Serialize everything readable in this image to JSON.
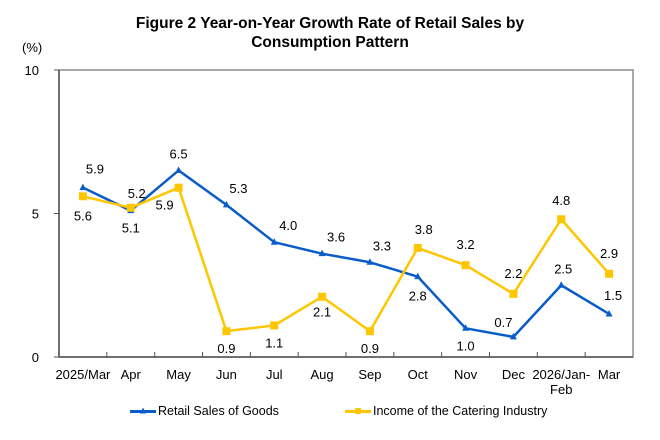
{
  "chart_data": {
    "type": "line",
    "title": "Figure 2 Year-on-Year Growth Rate of Retail Sales by Consumption Pattern",
    "title_lines": [
      "Figure 2 Year-on-Year Growth Rate of Retail Sales by",
      "Consumption Pattern"
    ],
    "ylabel": "(%)",
    "xlabel": "",
    "ylim": [
      0,
      10
    ],
    "yticks": [
      0,
      5,
      10
    ],
    "grid": false,
    "legend_position": "bottom",
    "categories": [
      "2025/Mar",
      "Apr",
      "May",
      "Jun",
      "Jul",
      "Aug",
      "Sep",
      "Oct",
      "Nov",
      "Dec",
      "2026/Jan-Feb",
      "Mar"
    ],
    "category_label_lines": [
      [
        "2025/Mar"
      ],
      [
        "Apr"
      ],
      [
        "May"
      ],
      [
        "Jun"
      ],
      [
        "Jul"
      ],
      [
        "Aug"
      ],
      [
        "Sep"
      ],
      [
        "Oct"
      ],
      [
        "Nov"
      ],
      [
        "Dec"
      ],
      [
        "2026/Jan-",
        "Feb"
      ],
      [
        "Mar"
      ]
    ],
    "series": [
      {
        "name": "Retail Sales of Goods",
        "color": "#0a5cc8",
        "marker": "triangle",
        "values": [
          5.9,
          5.1,
          6.5,
          5.3,
          4.0,
          3.6,
          3.3,
          2.8,
          1.0,
          0.7,
          2.5,
          1.5
        ],
        "labels": [
          "5.9",
          "5.1",
          "6.5",
          "5.3",
          "4.0",
          "3.6",
          "3.3",
          "2.8",
          "1.0",
          "0.7",
          "2.5",
          "1.5"
        ]
      },
      {
        "name": "Income of the Catering Industry",
        "color": "#ffc600",
        "marker": "square",
        "values": [
          5.6,
          5.2,
          5.9,
          0.9,
          1.1,
          2.1,
          0.9,
          3.8,
          3.2,
          2.2,
          4.8,
          2.9
        ],
        "labels": [
          "5.6",
          "5.2",
          "5.9",
          "0.9",
          "1.1",
          "2.1",
          "0.9",
          "3.8",
          "3.2",
          "2.2",
          "4.8",
          "2.9"
        ]
      }
    ]
  }
}
